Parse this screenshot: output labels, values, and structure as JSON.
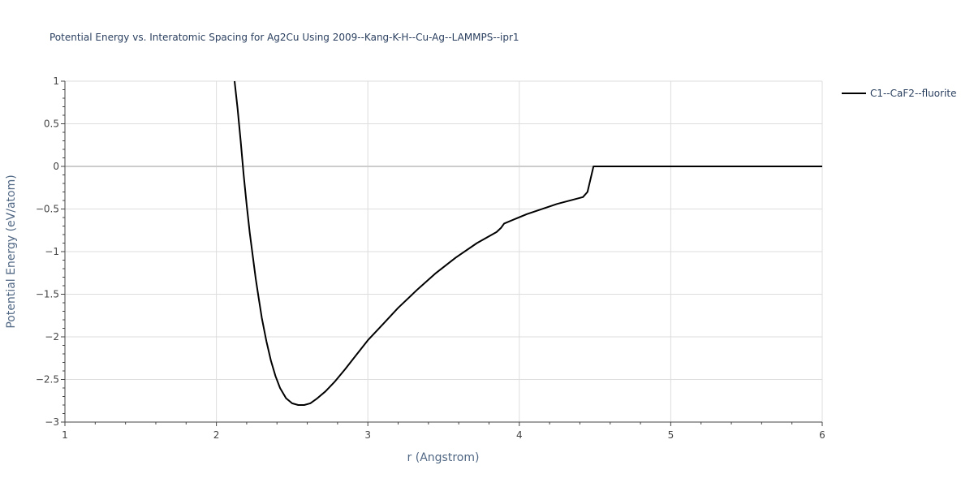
{
  "chart_data": {
    "type": "line",
    "title": "Potential Energy vs. Interatomic Spacing for Ag2Cu Using 2009--Kang-K-H--Cu-Ag--LAMMPS--ipr1",
    "xlabel": "r (Angstrom)",
    "ylabel": "Potential Energy (eV/atom)",
    "xlim": [
      1,
      6
    ],
    "ylim": [
      -3,
      1
    ],
    "x_ticks": [
      1,
      2,
      3,
      4,
      5,
      6
    ],
    "x_tick_labels": [
      "1",
      "2",
      "3",
      "4",
      "5",
      "6"
    ],
    "y_ticks": [
      1,
      0.5,
      0,
      -0.5,
      -1,
      -1.5,
      -2,
      -2.5,
      -3
    ],
    "y_tick_labels": [
      "1",
      "0.5",
      "0",
      "−0.5",
      "−1",
      "−1.5",
      "−2",
      "−2.5",
      "−3"
    ],
    "grid": true,
    "legend_position": "top-right",
    "series": [
      {
        "name": "C1--CaF2--fluorite",
        "color": "#000000",
        "x": [
          2.12,
          2.14,
          2.16,
          2.18,
          2.2,
          2.22,
          2.24,
          2.26,
          2.28,
          2.3,
          2.33,
          2.36,
          2.39,
          2.42,
          2.46,
          2.5,
          2.54,
          2.58,
          2.62,
          2.66,
          2.72,
          2.78,
          2.85,
          2.92,
          3.0,
          3.1,
          3.2,
          3.33,
          3.45,
          3.58,
          3.72,
          3.85,
          3.88,
          3.9,
          4.05,
          4.25,
          4.42,
          4.45,
          4.47,
          4.49,
          4.5,
          4.6,
          5.0,
          5.5,
          6.0
        ],
        "y": [
          1.0,
          0.68,
          0.3,
          -0.1,
          -0.45,
          -0.78,
          -1.05,
          -1.32,
          -1.55,
          -1.78,
          -2.05,
          -2.28,
          -2.46,
          -2.6,
          -2.72,
          -2.78,
          -2.8,
          -2.8,
          -2.78,
          -2.73,
          -2.64,
          -2.53,
          -2.38,
          -2.22,
          -2.04,
          -1.85,
          -1.66,
          -1.44,
          -1.25,
          -1.07,
          -0.9,
          -0.77,
          -0.72,
          -0.67,
          -0.56,
          -0.44,
          -0.36,
          -0.3,
          -0.15,
          0.0,
          0.0,
          0.0,
          0.0,
          0.0,
          0.0
        ]
      }
    ]
  }
}
